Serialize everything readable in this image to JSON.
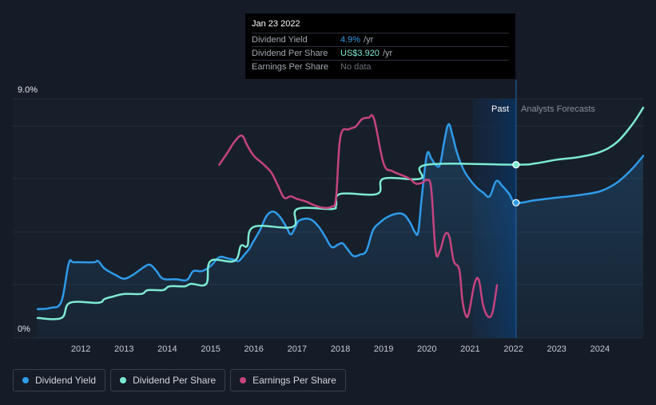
{
  "tooltip": {
    "date": "Jan 23 2022",
    "rows": [
      {
        "label": "Dividend Yield",
        "value": "4.9%",
        "unit": "/yr",
        "color": "#2f9bea"
      },
      {
        "label": "Dividend Per Share",
        "value": "US$3.920",
        "unit": "/yr",
        "color": "#7dead2"
      },
      {
        "label": "Earnings Per Share",
        "value": "No data",
        "unit": "",
        "color": "#6b7078"
      }
    ]
  },
  "axis": {
    "y_top_label": "9.0%",
    "y_bottom_label": "0%"
  },
  "regions": {
    "past_label": "Past",
    "forecast_label": "Analysts Forecasts"
  },
  "legend": [
    {
      "label": "Dividend Yield",
      "color": "#2f9bea"
    },
    {
      "label": "Dividend Per Share",
      "color": "#7dead2"
    },
    {
      "label": "Earnings Per Share",
      "color": "#c6447f"
    }
  ],
  "chart_data": {
    "type": "line",
    "x_ticks": [
      "2012",
      "2013",
      "2014",
      "2015",
      "2016",
      "2017",
      "2018",
      "2019",
      "2020",
      "2021",
      "2022",
      "2023",
      "2024"
    ],
    "xlim": [
      2011.0,
      2025.0
    ],
    "ylim": [
      0,
      9.0
    ],
    "y_unit": "%",
    "past_end": 2022.06,
    "forecast_start": 2021.06,
    "series": [
      {
        "name": "Dividend Yield",
        "color": "#2f9bea",
        "area": true,
        "points": [
          [
            2011.0,
            0.7
          ],
          [
            2011.3,
            0.75
          ],
          [
            2011.55,
            1.0
          ],
          [
            2011.72,
            2.5
          ],
          [
            2011.85,
            2.55
          ],
          [
            2012.3,
            2.55
          ],
          [
            2012.4,
            2.6
          ],
          [
            2012.55,
            2.3
          ],
          [
            2012.8,
            2.05
          ],
          [
            2013.0,
            1.9
          ],
          [
            2013.2,
            2.05
          ],
          [
            2013.45,
            2.35
          ],
          [
            2013.6,
            2.45
          ],
          [
            2013.75,
            2.2
          ],
          [
            2013.9,
            1.9
          ],
          [
            2014.2,
            1.88
          ],
          [
            2014.45,
            1.85
          ],
          [
            2014.6,
            2.2
          ],
          [
            2014.8,
            2.2
          ],
          [
            2015.0,
            2.4
          ],
          [
            2015.2,
            2.75
          ],
          [
            2015.4,
            2.7
          ],
          [
            2015.55,
            2.65
          ],
          [
            2015.65,
            2.6
          ],
          [
            2015.78,
            2.85
          ],
          [
            2015.88,
            3.05
          ],
          [
            2016.0,
            3.4
          ],
          [
            2016.15,
            3.85
          ],
          [
            2016.3,
            4.4
          ],
          [
            2016.45,
            4.55
          ],
          [
            2016.6,
            4.35
          ],
          [
            2016.75,
            3.95
          ],
          [
            2016.85,
            3.65
          ],
          [
            2016.95,
            3.9
          ],
          [
            2017.05,
            4.2
          ],
          [
            2017.3,
            4.25
          ],
          [
            2017.5,
            3.95
          ],
          [
            2017.65,
            3.55
          ],
          [
            2017.8,
            3.15
          ],
          [
            2017.95,
            3.25
          ],
          [
            2018.05,
            3.3
          ],
          [
            2018.15,
            3.1
          ],
          [
            2018.3,
            2.8
          ],
          [
            2018.45,
            2.85
          ],
          [
            2018.6,
            3.0
          ],
          [
            2018.75,
            3.8
          ],
          [
            2018.9,
            4.1
          ],
          [
            2019.05,
            4.3
          ],
          [
            2019.25,
            4.45
          ],
          [
            2019.45,
            4.45
          ],
          [
            2019.6,
            4.15
          ],
          [
            2019.72,
            3.75
          ],
          [
            2019.8,
            3.75
          ],
          [
            2019.88,
            5.1
          ],
          [
            2020.0,
            6.8
          ],
          [
            2020.1,
            6.65
          ],
          [
            2020.2,
            6.4
          ],
          [
            2020.3,
            6.4
          ],
          [
            2020.4,
            7.3
          ],
          [
            2020.5,
            8.0
          ],
          [
            2020.6,
            7.5
          ],
          [
            2020.7,
            6.85
          ],
          [
            2020.85,
            6.2
          ],
          [
            2021.0,
            5.8
          ],
          [
            2021.15,
            5.5
          ],
          [
            2021.3,
            5.3
          ],
          [
            2021.45,
            5.15
          ],
          [
            2021.6,
            5.75
          ],
          [
            2021.75,
            5.55
          ],
          [
            2021.9,
            5.25
          ],
          [
            2022.06,
            4.9
          ],
          [
            2022.5,
            5.0
          ],
          [
            2023.0,
            5.1
          ],
          [
            2023.5,
            5.2
          ],
          [
            2024.0,
            5.35
          ],
          [
            2024.4,
            5.7
          ],
          [
            2024.75,
            6.25
          ],
          [
            2025.0,
            6.75
          ]
        ]
      },
      {
        "name": "Dividend Per Share",
        "color": "#7dead2",
        "area": false,
        "points": [
          [
            2011.0,
            0.35
          ],
          [
            2011.55,
            0.35
          ],
          [
            2011.75,
            0.95
          ],
          [
            2012.4,
            0.95
          ],
          [
            2012.55,
            1.1
          ],
          [
            2012.75,
            1.2
          ],
          [
            2013.0,
            1.3
          ],
          [
            2013.4,
            1.3
          ],
          [
            2013.55,
            1.45
          ],
          [
            2013.9,
            1.45
          ],
          [
            2014.05,
            1.6
          ],
          [
            2014.4,
            1.6
          ],
          [
            2014.55,
            1.7
          ],
          [
            2014.9,
            1.7
          ],
          [
            2015.0,
            2.6
          ],
          [
            2015.55,
            2.6
          ],
          [
            2015.7,
            3.2
          ],
          [
            2015.85,
            3.2
          ],
          [
            2016.0,
            3.95
          ],
          [
            2016.9,
            3.95
          ],
          [
            2017.0,
            4.65
          ],
          [
            2017.8,
            4.65
          ],
          [
            2017.9,
            4.8
          ],
          [
            2018.0,
            5.25
          ],
          [
            2018.85,
            5.25
          ],
          [
            2019.0,
            5.85
          ],
          [
            2019.85,
            5.85
          ],
          [
            2020.0,
            6.4
          ],
          [
            2022.06,
            6.4
          ],
          [
            2022.5,
            6.45
          ],
          [
            2023.0,
            6.6
          ],
          [
            2023.5,
            6.7
          ],
          [
            2024.0,
            6.9
          ],
          [
            2024.4,
            7.3
          ],
          [
            2024.75,
            8.0
          ],
          [
            2025.0,
            8.65
          ]
        ]
      },
      {
        "name": "Earnings Per Share",
        "color": "#c6447f",
        "area": false,
        "points": [
          [
            2015.2,
            6.4
          ],
          [
            2015.4,
            6.9
          ],
          [
            2015.55,
            7.3
          ],
          [
            2015.72,
            7.55
          ],
          [
            2015.85,
            7.15
          ],
          [
            2016.0,
            6.75
          ],
          [
            2016.2,
            6.45
          ],
          [
            2016.4,
            6.1
          ],
          [
            2016.55,
            5.6
          ],
          [
            2016.7,
            5.1
          ],
          [
            2016.85,
            5.15
          ],
          [
            2017.0,
            5.05
          ],
          [
            2017.2,
            4.95
          ],
          [
            2017.4,
            4.8
          ],
          [
            2017.6,
            4.7
          ],
          [
            2017.8,
            4.75
          ],
          [
            2017.9,
            5.1
          ],
          [
            2018.0,
            7.5
          ],
          [
            2018.2,
            7.8
          ],
          [
            2018.35,
            7.9
          ],
          [
            2018.5,
            8.2
          ],
          [
            2018.65,
            8.25
          ],
          [
            2018.78,
            8.2
          ],
          [
            2019.0,
            6.45
          ],
          [
            2019.2,
            6.15
          ],
          [
            2019.4,
            6.0
          ],
          [
            2019.6,
            5.85
          ],
          [
            2019.75,
            5.65
          ],
          [
            2019.9,
            5.7
          ],
          [
            2020.0,
            5.8
          ],
          [
            2020.1,
            5.45
          ],
          [
            2020.2,
            3.0
          ],
          [
            2020.3,
            3.0
          ],
          [
            2020.42,
            3.65
          ],
          [
            2020.52,
            3.55
          ],
          [
            2020.62,
            2.6
          ],
          [
            2020.75,
            2.25
          ],
          [
            2020.82,
            1.05
          ],
          [
            2020.9,
            0.45
          ],
          [
            2020.97,
            0.55
          ],
          [
            2021.1,
            1.7
          ],
          [
            2021.2,
            1.85
          ],
          [
            2021.3,
            0.85
          ],
          [
            2021.42,
            0.4
          ],
          [
            2021.52,
            0.6
          ],
          [
            2021.62,
            1.65
          ]
        ]
      }
    ],
    "markers": [
      {
        "series": "Dividend Per Share",
        "x": 2022.06,
        "y": 6.4
      },
      {
        "series": "Dividend Yield",
        "x": 2022.06,
        "y": 4.9
      }
    ]
  }
}
